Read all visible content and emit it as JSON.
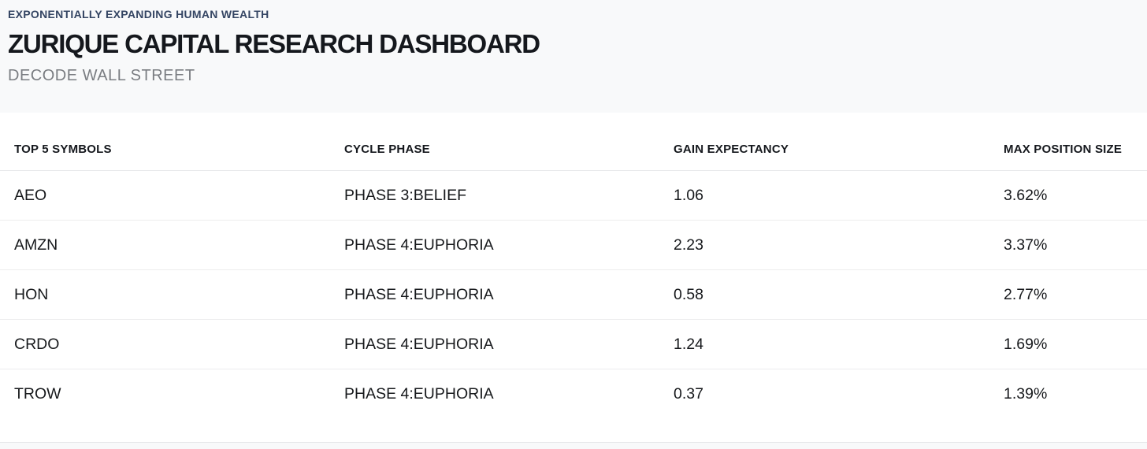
{
  "header": {
    "eyebrow": "EXPONENTIALLY EXPANDING HUMAN WEALTH",
    "title": "ZURIQUE CAPITAL RESEARCH DASHBOARD",
    "subtitle": "DECODE WALL STREET"
  },
  "table": {
    "columns": [
      "TOP 5 SYMBOLS",
      "CYCLE PHASE",
      "GAIN EXPECTANCY",
      "MAX POSITION SIZE"
    ],
    "rows": [
      {
        "symbol": "AEO",
        "cycle_phase": "PHASE 3:BELIEF",
        "gain_expectancy": "1.06",
        "max_position_size": "3.62%"
      },
      {
        "symbol": "AMZN",
        "cycle_phase": "PHASE 4:EUPHORIA",
        "gain_expectancy": "2.23",
        "max_position_size": "3.37%"
      },
      {
        "symbol": "HON",
        "cycle_phase": "PHASE 4:EUPHORIA",
        "gain_expectancy": "0.58",
        "max_position_size": "2.77%"
      },
      {
        "symbol": "CRDO",
        "cycle_phase": "PHASE 4:EUPHORIA",
        "gain_expectancy": "1.24",
        "max_position_size": "1.69%"
      },
      {
        "symbol": "TROW",
        "cycle_phase": "PHASE 4:EUPHORIA",
        "gain_expectancy": "0.37",
        "max_position_size": "1.39%"
      }
    ]
  },
  "colors": {
    "eyebrow_text": "#344563",
    "title_text": "#15181d",
    "subtitle_text": "#7a7d82",
    "masthead_background": "#f8f9fa",
    "row_divider": "#ededee",
    "footer_strip_background": "#f8f9fa"
  }
}
